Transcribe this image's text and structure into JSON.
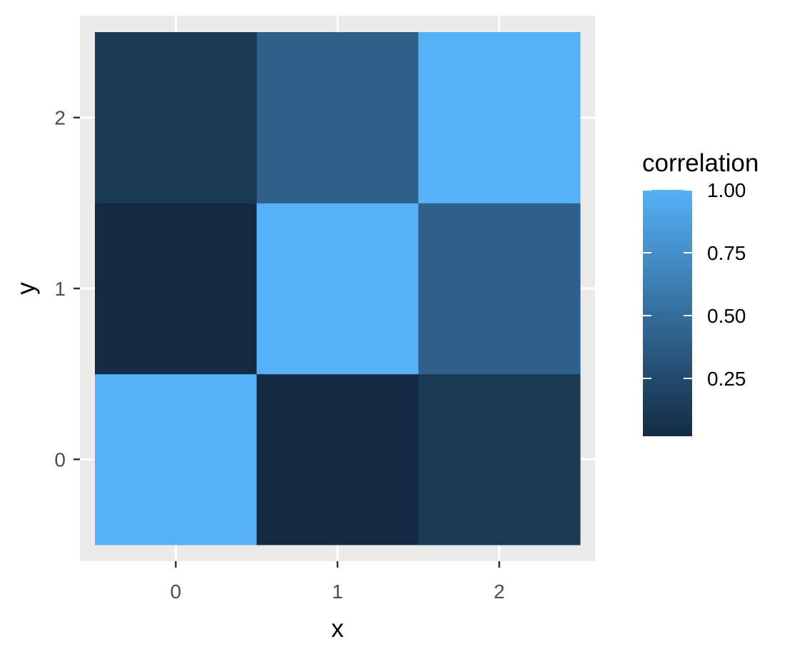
{
  "chart_data": {
    "type": "heatmap",
    "x_categories": [
      "0",
      "1",
      "2"
    ],
    "y_categories": [
      "0",
      "1",
      "2"
    ],
    "cells": [
      {
        "x": "0",
        "y": "0",
        "value": 1.0
      },
      {
        "x": "1",
        "y": "0",
        "value": 0.02
      },
      {
        "x": "2",
        "y": "0",
        "value": 0.12
      },
      {
        "x": "0",
        "y": "1",
        "value": 0.02
      },
      {
        "x": "1",
        "y": "1",
        "value": 1.0
      },
      {
        "x": "2",
        "y": "1",
        "value": 0.41
      },
      {
        "x": "0",
        "y": "2",
        "value": 0.12
      },
      {
        "x": "1",
        "y": "2",
        "value": 0.41
      },
      {
        "x": "2",
        "y": "2",
        "value": 1.0
      }
    ],
    "xlabel": "x",
    "ylabel": "y",
    "legend": {
      "title": "correlation",
      "position": "right",
      "breaks": [
        0.25,
        0.5,
        0.75,
        1.0
      ],
      "break_labels": [
        "0.25",
        "0.50",
        "0.75",
        "1.00"
      ],
      "range": [
        0.02,
        1.0
      ]
    },
    "color_low": "#132B43",
    "color_high": "#56B1F7",
    "panel_background": "#EBEBEB",
    "grid_color": "#FFFFFF",
    "grid": true
  }
}
